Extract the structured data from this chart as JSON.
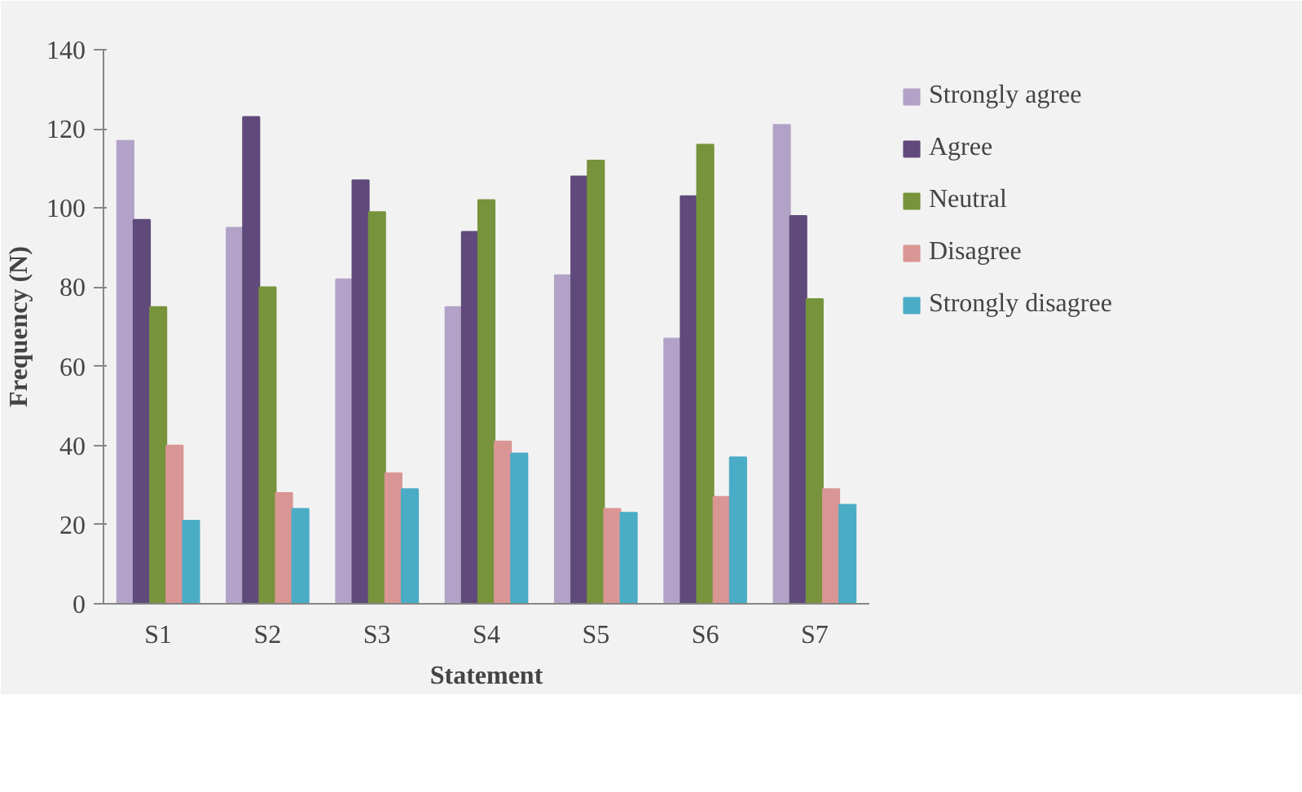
{
  "chart_data": {
    "type": "bar",
    "xlabel": "Statement",
    "ylabel": "Frequency (N)",
    "categories": [
      "S1",
      "S2",
      "S3",
      "S4",
      "S5",
      "S6",
      "S7"
    ],
    "ylim": [
      0,
      140
    ],
    "yticks": [
      0,
      20,
      40,
      60,
      80,
      100,
      120,
      140
    ],
    "grid": false,
    "legend": "right",
    "series": [
      {
        "name": "Strongly agree",
        "color": "#b3a2c7",
        "values": [
          117,
          95,
          82,
          75,
          83,
          67,
          121
        ]
      },
      {
        "name": "Agree",
        "color": "#604a7b",
        "values": [
          97,
          123,
          107,
          94,
          108,
          103,
          98
        ]
      },
      {
        "name": "Neutral",
        "color": "#77933c",
        "values": [
          75,
          80,
          99,
          102,
          112,
          116,
          77
        ]
      },
      {
        "name": "Disagree",
        "color": "#d99694",
        "values": [
          40,
          28,
          33,
          41,
          24,
          27,
          29
        ]
      },
      {
        "name": "Strongly disagree",
        "color": "#4bacc6",
        "values": [
          21,
          24,
          29,
          38,
          23,
          37,
          25
        ]
      }
    ]
  }
}
